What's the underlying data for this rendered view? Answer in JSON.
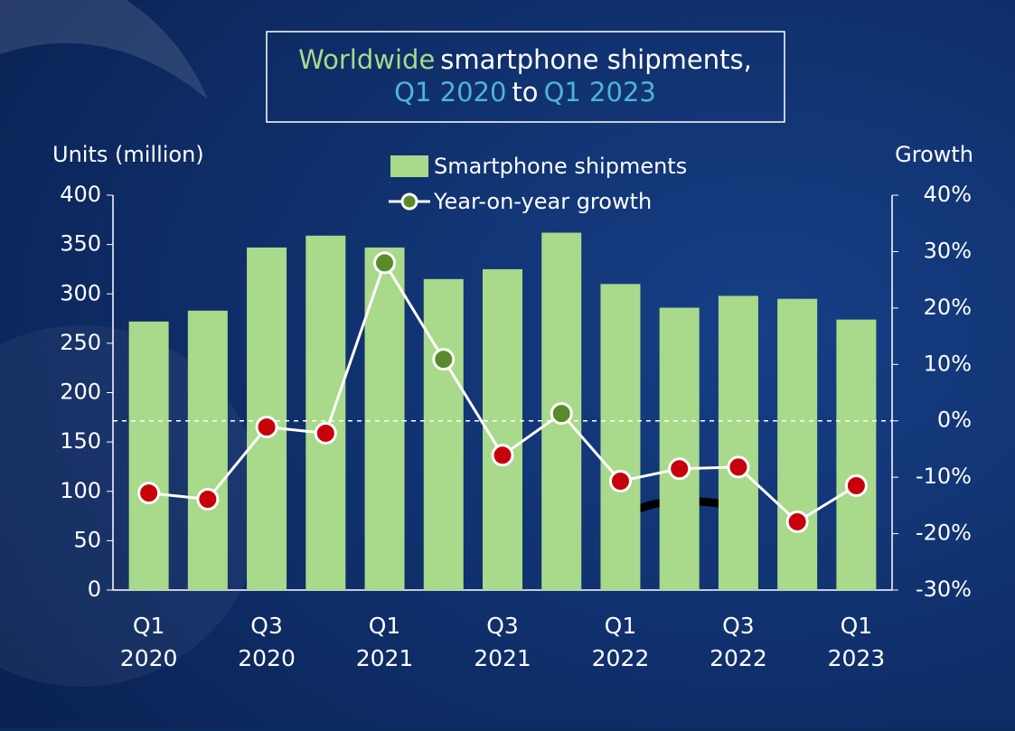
{
  "chart_data": {
    "type": "bar_line",
    "title_lines": [
      [
        {
          "text": "Worldwide",
          "color": "#a9d98a"
        },
        {
          "text": "smartphone shipments,",
          "color": "#ffffff"
        }
      ],
      [
        {
          "text": "Q1 2020",
          "color": "#4fb3d9"
        },
        {
          "text": "to",
          "color": "#ffffff"
        },
        {
          "text": "Q1 2023",
          "color": "#4fb3d9"
        }
      ]
    ],
    "ylabel": "Units (million)",
    "y2label": "Growth",
    "categories": [
      "Q1 2020",
      null,
      "Q3 2020",
      null,
      "Q1 2021",
      null,
      "Q3 2021",
      null,
      "Q1 2022",
      null,
      "Q3 2022",
      null,
      "Q1 2023"
    ],
    "series": [
      {
        "name": "Smartphone shipments",
        "type": "bar",
        "color": "#a9d98a",
        "values": [
          272,
          283,
          347,
          359,
          347,
          315,
          325,
          362,
          310,
          286,
          298,
          295,
          274
        ]
      },
      {
        "name": "Year-on-year growth",
        "type": "line",
        "axis": "y2",
        "color": "#ffffff",
        "positive_color": "#5a8a2a",
        "negative_color": "#c8000a",
        "values": [
          -12.8,
          -13.9,
          -1.1,
          -2.2,
          28.0,
          10.9,
          -6.1,
          1.3,
          -10.7,
          -8.5,
          -8.2,
          -17.9,
          -11.5
        ]
      }
    ],
    "ylim": [
      0,
      400
    ],
    "yticks": [
      0,
      50,
      100,
      150,
      200,
      250,
      300,
      350,
      400
    ],
    "y2lim": [
      -30,
      40
    ],
    "y2ticks": [
      {
        "value": -30,
        "label": "-30%"
      },
      {
        "value": -20,
        "label": "-20%"
      },
      {
        "value": -10,
        "label": "-10%"
      },
      {
        "value": 0,
        "label": "0%"
      },
      {
        "value": 10,
        "label": "10%"
      },
      {
        "value": 20,
        "label": "20%"
      },
      {
        "value": 30,
        "label": "30%"
      },
      {
        "value": 40,
        "label": "40%"
      }
    ],
    "zero_line": true
  }
}
